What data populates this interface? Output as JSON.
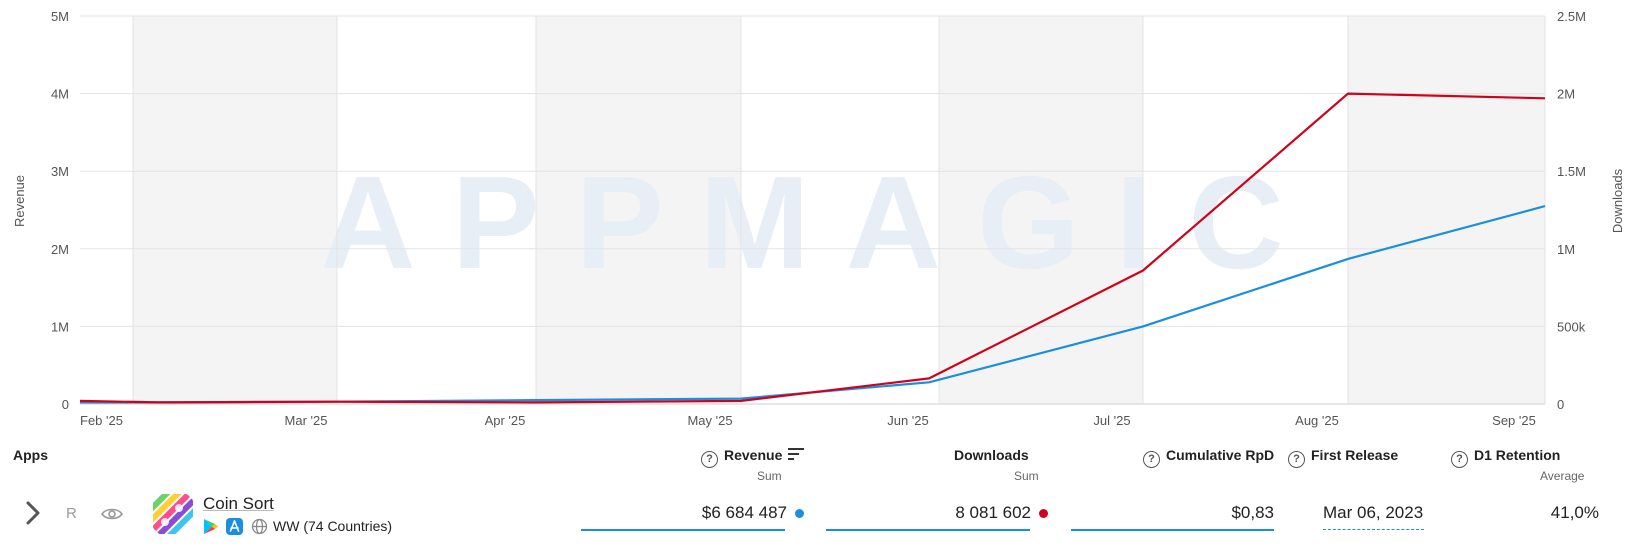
{
  "chart_data": {
    "type": "line",
    "x": [
      "Feb '25",
      "Mar '25",
      "Apr '25",
      "May '25",
      "Jun '25",
      "Jul '25",
      "Aug '25",
      "Sep '25"
    ],
    "series": [
      {
        "name": "Revenue",
        "axis": "left",
        "color": "#1a8fe0",
        "points": [
          [
            0.0,
            20000
          ],
          [
            0.13,
            20000
          ],
          [
            1.0,
            30000
          ],
          [
            2.0,
            50000
          ],
          [
            3.0,
            70000
          ],
          [
            3.95,
            280000
          ],
          [
            5.0,
            1000000
          ],
          [
            6.0,
            1870000
          ],
          [
            7.0,
            2550000
          ]
        ]
      },
      {
        "name": "Downloads",
        "axis": "right",
        "color": "#d0021b",
        "points": [
          [
            0.0,
            20000
          ],
          [
            0.13,
            10000
          ],
          [
            1.0,
            15000
          ],
          [
            2.0,
            10000
          ],
          [
            3.0,
            20000
          ],
          [
            3.95,
            165000
          ],
          [
            5.0,
            860000
          ],
          [
            6.0,
            2000000
          ],
          [
            7.0,
            1970000
          ]
        ]
      }
    ],
    "y_left": {
      "label": "Revenue",
      "range": [
        0,
        5000000
      ],
      "ticks": [
        "0",
        "1M",
        "2M",
        "3M",
        "4M",
        "5M"
      ]
    },
    "y_right": {
      "label": "Downloads",
      "range": [
        0,
        2500000
      ],
      "ticks": [
        "0",
        "500k",
        "1M",
        "1.5M",
        "2M",
        "2.5M"
      ]
    },
    "x_ticks": [
      "Feb '25",
      "Mar '25",
      "Apr '25",
      "May '25",
      "Jun '25",
      "Jul '25",
      "Aug '25",
      "Sep '25"
    ],
    "grid": true,
    "watermark": "APPMAGIC"
  },
  "table": {
    "apps_header": "Apps",
    "columns": {
      "revenue": {
        "label": "Revenue",
        "sub": "Sum"
      },
      "downloads": {
        "label": "Downloads",
        "sub": "Sum"
      },
      "rpd": {
        "label": "Cumulative RpD"
      },
      "first_release": {
        "label": "First Release"
      },
      "retention": {
        "label": "D1 Retention",
        "sub": "Average"
      }
    },
    "row": {
      "rank": "R",
      "app_name": "Coin Sort",
      "region": "WW (74 Countries)",
      "revenue": "$6 684 487",
      "downloads": "8 081 602",
      "rpd": "$0,83",
      "first_release": "Mar 06, 2023",
      "retention": "41,0%"
    }
  },
  "icons": {
    "expand": "chevron-right-icon",
    "visibility": "eye-icon",
    "help": "question-circle-icon",
    "sort": "sort-desc-icon",
    "google_play": "google-play-icon",
    "app_store": "app-store-icon",
    "web": "globe-icon"
  }
}
